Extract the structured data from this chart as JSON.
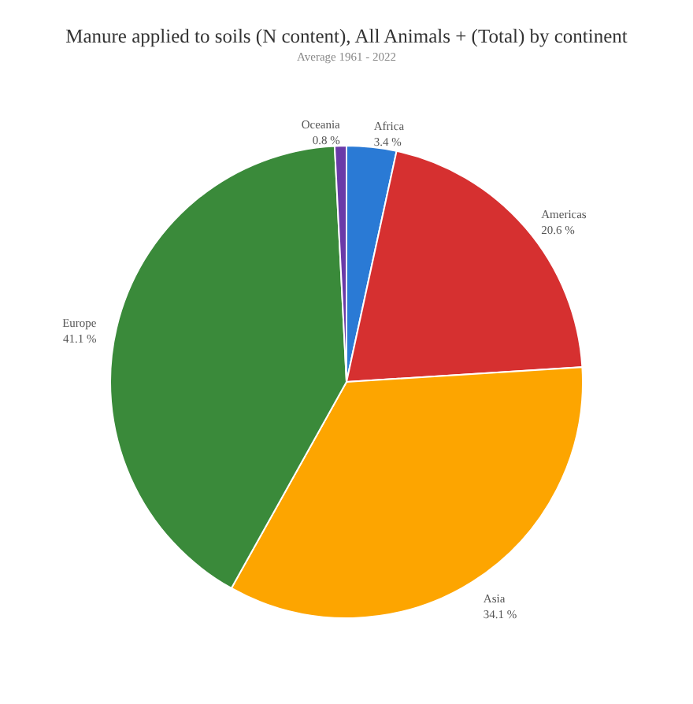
{
  "chart_data": {
    "type": "pie",
    "title": "Manure applied to soils (N content), All Animals + (Total) by continent",
    "subtitle": "Average 1961 - 2022",
    "categories": [
      "Africa",
      "Americas",
      "Asia",
      "Europe",
      "Oceania"
    ],
    "values": [
      3.4,
      20.6,
      34.1,
      41.1,
      0.8
    ],
    "value_labels": [
      "3.4 %",
      "20.6 %",
      "34.1 %",
      "41.1 %",
      "0.8 %"
    ],
    "colors": [
      "#2a7ad5",
      "#d63030",
      "#fda500",
      "#3a8a3a",
      "#6a3aa8"
    ],
    "legend": false
  }
}
